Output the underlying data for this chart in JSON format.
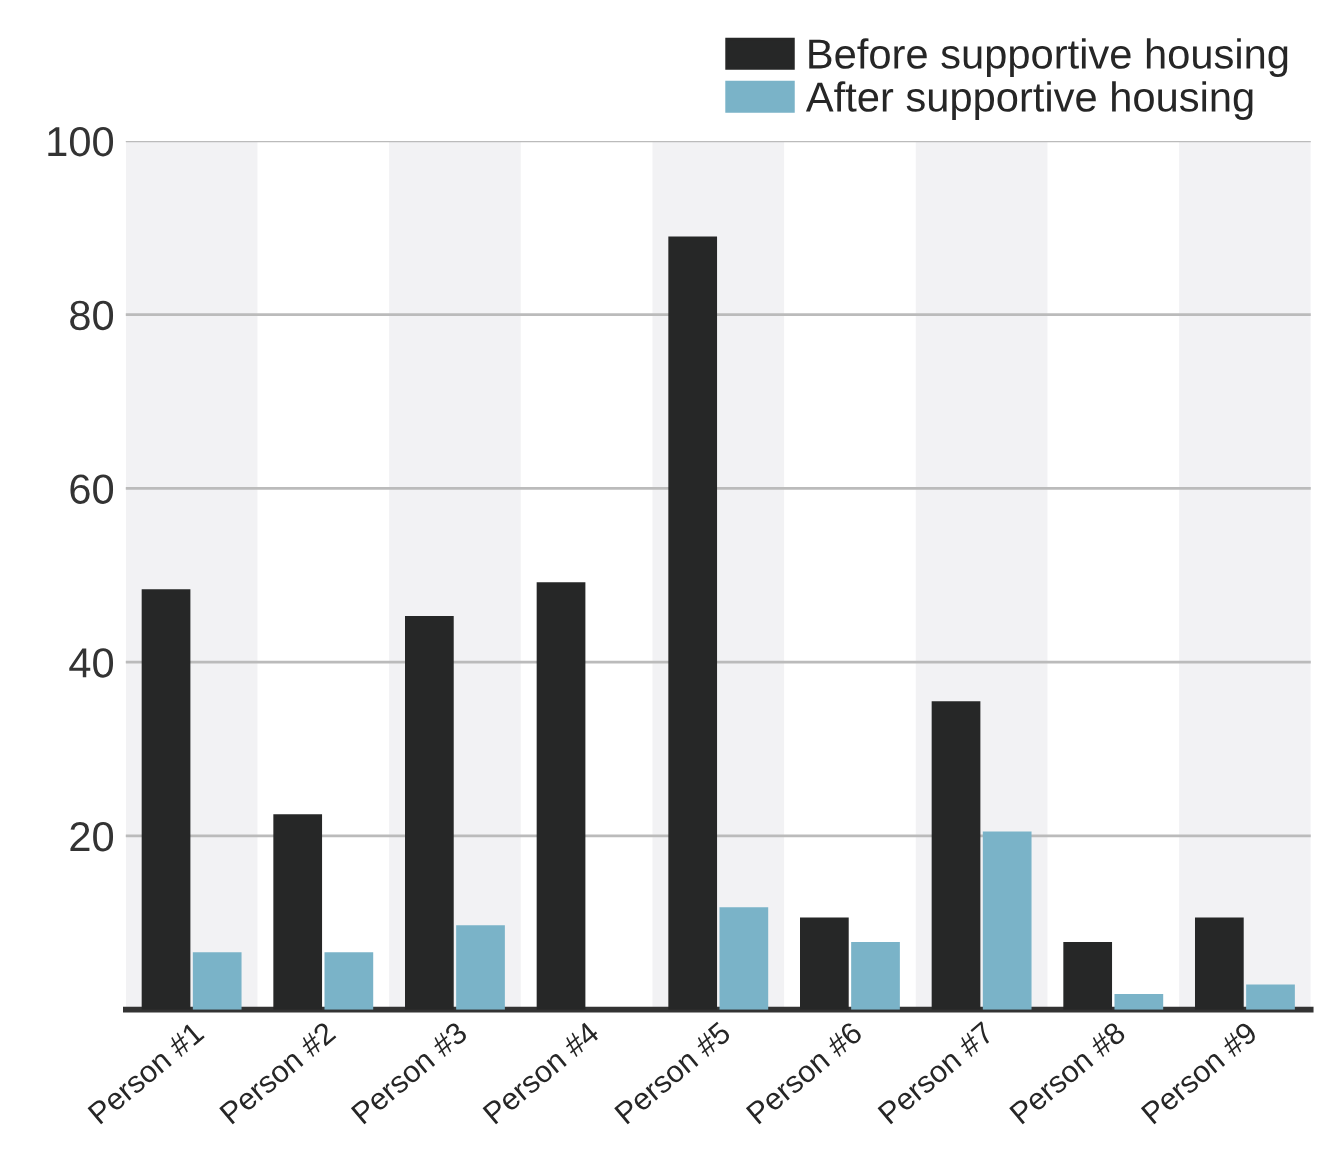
{
  "chart_data": {
    "type": "bar",
    "categories": [
      "Person #1",
      "Person #2",
      "Person #3",
      "Person #4",
      "Person #5",
      "Person #6",
      "Person #7",
      "Person #8",
      "Person #9"
    ],
    "series": [
      {
        "name": "Before supportive housing",
        "color": "#262727",
        "values": [
          48.4,
          22.5,
          45.3,
          49.2,
          89,
          10.6,
          35.5,
          7.8,
          10.6
        ]
      },
      {
        "name": "After supportive housing",
        "color": "#7ab3c8",
        "values": [
          6.6,
          6.6,
          9.7,
          null,
          11.8,
          7.8,
          20.5,
          1.8,
          2.9
        ]
      }
    ],
    "ylim": [
      0,
      100
    ],
    "yticks": [
      20,
      40,
      60,
      80,
      100
    ],
    "grid": "y",
    "legend": "top right"
  }
}
